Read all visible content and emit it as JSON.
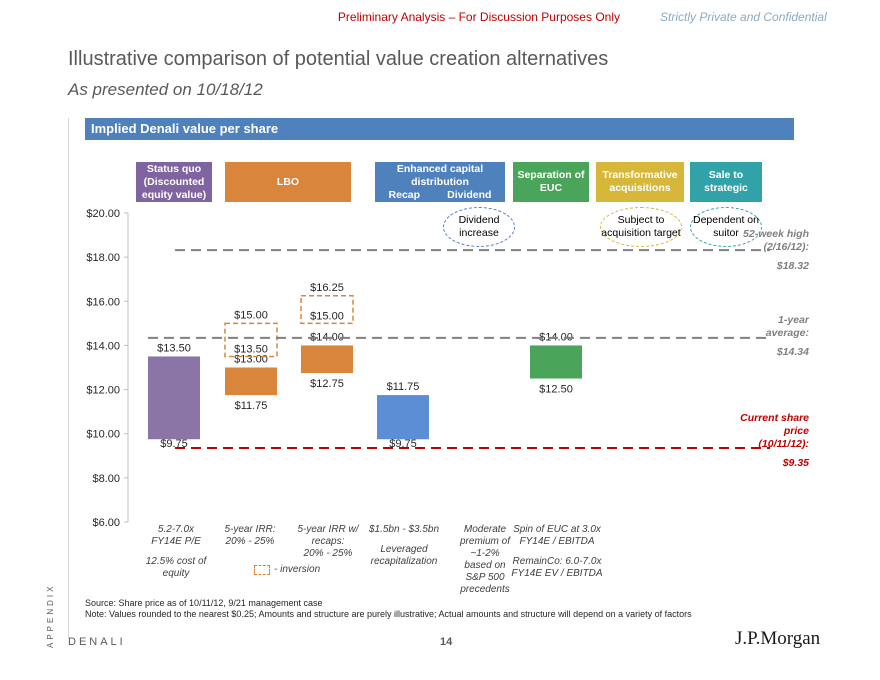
{
  "header": {
    "banner": "Preliminary Analysis – For Discussion Purposes Only",
    "confidential": "Strictly Private and Confidential",
    "title": "Illustrative comparison of potential value creation alternatives",
    "subtitle": "As presented on 10/18/12",
    "section_label": "Implied Denali value per share"
  },
  "columns": [
    {
      "label": "Status quo (Discounted equity value)",
      "color": "#8064a2"
    },
    {
      "label": "LBO",
      "color": "#d9853b"
    },
    {
      "label": "Enhanced capital distribution",
      "sub": [
        "Recap",
        "Dividend"
      ],
      "color": "#4f81bd"
    },
    {
      "label": "Separation of EUC",
      "color": "#4aa55a"
    },
    {
      "label": "Transformative acquisitions",
      "color": "#d6b73a"
    },
    {
      "label": "Sale to strategic",
      "color": "#31a2a8"
    }
  ],
  "bubbles": {
    "dividend": {
      "text": "Dividend increase",
      "color": "#4f81bd"
    },
    "acquisition": {
      "text": "Subject to acquisition target",
      "color": "#d6b73a"
    },
    "strategic": {
      "text": "Dependent on suitor",
      "color": "#31a2a8"
    }
  },
  "chart_data": {
    "type": "bar",
    "subtype": "floating-range",
    "ylim": [
      6,
      20
    ],
    "yticks": [
      "$6.00",
      "$8.00",
      "$10.00",
      "$12.00",
      "$14.00",
      "$16.00",
      "$18.00",
      "$20.00"
    ],
    "bars": [
      {
        "name": "Status quo",
        "low": 9.75,
        "high": 13.5,
        "low_label": "$9.75",
        "high_label": "$13.50",
        "color": "#8b74a6"
      },
      {
        "name": "LBO 5-year IRR",
        "low": 11.75,
        "high": 13.0,
        "low_label": "$11.75",
        "high_label": "$13.00",
        "color": "#d9853b"
      },
      {
        "name": "LBO 5-year IRR inversion",
        "low": 13.5,
        "high": 15.0,
        "low_label": "$13.50",
        "high_label": "$15.00",
        "dashed": true,
        "color": "#d9853b"
      },
      {
        "name": "LBO 5-year IRR w/ recaps",
        "low": 12.75,
        "high": 14.0,
        "low_label": "$12.75",
        "high_label": "$14.00",
        "color": "#d9853b"
      },
      {
        "name": "LBO recaps inversion",
        "low": 15.0,
        "high": 16.25,
        "low_label": "$15.00",
        "high_label": "$16.25",
        "dashed": true,
        "color": "#d9853b"
      },
      {
        "name": "Leveraged recapitalization",
        "low": 9.75,
        "high": 11.75,
        "low_label": "$9.75",
        "high_label": "$11.75",
        "color": "#5b8ed4"
      },
      {
        "name": "Separation of EUC",
        "low": 12.5,
        "high": 14.0,
        "low_label": "$12.50",
        "high_label": "$14.00",
        "color": "#4aa55a"
      }
    ],
    "reference_lines": [
      {
        "name": "52-week high",
        "value": 18.32,
        "label": "52-week high (2/16/12):",
        "value_label": "$18.32",
        "color": "#808080"
      },
      {
        "name": "1-year average",
        "value": 14.34,
        "label": "1-year average:",
        "value_label": "$14.34",
        "color": "#808080"
      },
      {
        "name": "Current share price",
        "value": 9.35,
        "label": "Current share price (10/11/12):",
        "value_label": "$9.35",
        "color": "#c00000"
      }
    ]
  },
  "notes": [
    {
      "lines": [
        "5.2-7.0x",
        "FY14E P/E",
        "",
        "12.5% cost of",
        "equity"
      ]
    },
    {
      "lines": [
        "5-year IRR:",
        "20% - 25%"
      ]
    },
    {
      "lines": [
        "5-year IRR w/",
        "recaps:",
        "20% - 25%"
      ]
    },
    {
      "lines": [
        "$1.5bn - $3.5bn",
        "",
        "Leveraged",
        "recapitalization"
      ]
    },
    {
      "lines": [
        "Moderate",
        "premium of",
        "~1-2%",
        "based on",
        "S&P 500",
        "precedents"
      ]
    },
    {
      "lines": [
        "Spin of EUC at 3.0x",
        "FY14E / EBITDA",
        "",
        "RemainCo: 6.0-7.0x",
        "FY14E EV / EBITDA"
      ]
    }
  ],
  "inversion_legend": "- inversion",
  "source": "Source: Share price as of 10/11/12, 9/21 management case",
  "note": "Note: Values rounded to the nearest $0.25; Amounts and structure are purely illustrative; Actual amounts and structure will depend on a variety of factors",
  "footer": {
    "appendix": "APPENDIX",
    "project": "DENALI",
    "page": "14",
    "logo": "J.P.Morgan"
  }
}
